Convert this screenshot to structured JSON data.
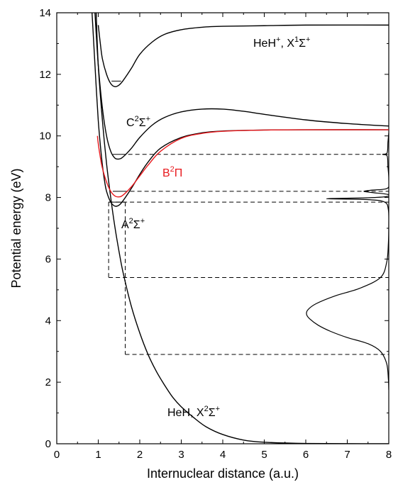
{
  "chart_data": {
    "type": "line",
    "title": "",
    "xlabel": "Internuclear distance (a.u.)",
    "ylabel": "Potential energy (eV)",
    "xlim": [
      0,
      8
    ],
    "ylim": [
      0,
      14
    ],
    "x_ticks": [
      0,
      1,
      2,
      3,
      4,
      5,
      6,
      7,
      8
    ],
    "y_ticks": [
      0,
      2,
      4,
      6,
      8,
      10,
      12,
      14
    ],
    "x_tick_labels": [
      "0",
      "1",
      "2",
      "3",
      "4",
      "5",
      "6",
      "7",
      "8"
    ],
    "y_tick_labels": [
      "0",
      "2",
      "4",
      "6",
      "8",
      "10",
      "12",
      "14"
    ],
    "grid": false,
    "colors": {
      "default": "#000000",
      "B2Pi": "#e8191d"
    },
    "annotations": [
      {
        "id": "hehplus",
        "main": "HeH",
        "sup1": "+",
        "mid": ", X",
        "sup2": "1",
        "sym": "Σ",
        "sup3": "+"
      },
      {
        "id": "c2sigma",
        "main": "C",
        "sup1": "2",
        "sym": "Σ",
        "sup2": "+"
      },
      {
        "id": "b2pi",
        "main": "B",
        "sup1": "2",
        "sym": "Π"
      },
      {
        "id": "a2sigma",
        "main": "A",
        "sup1": "2",
        "sym": "Σ",
        "sup2": "+"
      },
      {
        "id": "heh",
        "main": "HeH, X",
        "sup1": "2",
        "sym": "Σ",
        "sup2": "+"
      }
    ],
    "series": [
      {
        "label_id": "heh",
        "color": "#000000",
        "points": [
          [
            0.95,
            14.0
          ],
          [
            1.0,
            12.3
          ],
          [
            1.1,
            10.5
          ],
          [
            1.2,
            9.1
          ],
          [
            1.3,
            8.0
          ],
          [
            1.4,
            7.05
          ],
          [
            1.5,
            6.25
          ],
          [
            1.6,
            5.55
          ],
          [
            1.8,
            4.45
          ],
          [
            2.0,
            3.6
          ],
          [
            2.2,
            2.9
          ],
          [
            2.4,
            2.35
          ],
          [
            2.6,
            1.9
          ],
          [
            2.8,
            1.5
          ],
          [
            3.0,
            1.2
          ],
          [
            3.3,
            0.85
          ],
          [
            3.6,
            0.55
          ],
          [
            4.0,
            0.3
          ],
          [
            4.5,
            0.12
          ],
          [
            5.0,
            0.05
          ],
          [
            6.0,
            0.01
          ],
          [
            8.0,
            0.0
          ]
        ]
      },
      {
        "label_id": "a2sigma",
        "color": "#000000",
        "points": [
          [
            0.85,
            14.0
          ],
          [
            0.9,
            12.8
          ],
          [
            0.95,
            11.6
          ],
          [
            1.0,
            10.5
          ],
          [
            1.05,
            9.7
          ],
          [
            1.1,
            9.05
          ],
          [
            1.15,
            8.55
          ],
          [
            1.2,
            8.2
          ],
          [
            1.3,
            7.85
          ],
          [
            1.4,
            7.72
          ],
          [
            1.5,
            7.75
          ],
          [
            1.6,
            7.9
          ],
          [
            1.8,
            8.3
          ],
          [
            2.0,
            8.75
          ],
          [
            2.2,
            9.15
          ],
          [
            2.5,
            9.6
          ],
          [
            3.0,
            9.95
          ],
          [
            3.5,
            10.1
          ],
          [
            4.0,
            10.16
          ],
          [
            5.0,
            10.19
          ],
          [
            6.0,
            10.2
          ],
          [
            8.0,
            10.2
          ]
        ]
      },
      {
        "label_id": "b2pi",
        "color": "#e8191d",
        "points": [
          [
            0.98,
            10.0
          ],
          [
            1.0,
            9.75
          ],
          [
            1.05,
            9.3
          ],
          [
            1.1,
            8.95
          ],
          [
            1.2,
            8.5
          ],
          [
            1.3,
            8.2
          ],
          [
            1.4,
            8.05
          ],
          [
            1.5,
            8.02
          ],
          [
            1.6,
            8.08
          ],
          [
            1.8,
            8.35
          ],
          [
            2.0,
            8.7
          ],
          [
            2.2,
            9.05
          ],
          [
            2.5,
            9.5
          ],
          [
            3.0,
            9.92
          ],
          [
            3.5,
            10.08
          ],
          [
            4.0,
            10.15
          ],
          [
            5.0,
            10.19
          ],
          [
            6.0,
            10.2
          ],
          [
            8.0,
            10.2
          ]
        ]
      },
      {
        "label_id": "c2sigma",
        "color": "#000000",
        "points": [
          [
            0.92,
            14.0
          ],
          [
            1.0,
            12.3
          ],
          [
            1.1,
            10.9
          ],
          [
            1.2,
            10.0
          ],
          [
            1.3,
            9.5
          ],
          [
            1.4,
            9.28
          ],
          [
            1.5,
            9.25
          ],
          [
            1.6,
            9.32
          ],
          [
            1.8,
            9.6
          ],
          [
            2.0,
            9.95
          ],
          [
            2.3,
            10.35
          ],
          [
            2.6,
            10.6
          ],
          [
            3.0,
            10.78
          ],
          [
            3.5,
            10.87
          ],
          [
            4.0,
            10.87
          ],
          [
            4.5,
            10.8
          ],
          [
            5.0,
            10.7
          ],
          [
            6.0,
            10.52
          ],
          [
            7.0,
            10.4
          ],
          [
            8.0,
            10.32
          ]
        ]
      },
      {
        "label_id": "hehplus",
        "color": "#000000",
        "points": [
          [
            1.0,
            13.6
          ],
          [
            1.05,
            13.0
          ],
          [
            1.1,
            12.5
          ],
          [
            1.2,
            12.0
          ],
          [
            1.3,
            11.7
          ],
          [
            1.4,
            11.6
          ],
          [
            1.5,
            11.65
          ],
          [
            1.6,
            11.8
          ],
          [
            1.8,
            12.2
          ],
          [
            2.0,
            12.65
          ],
          [
            2.3,
            13.05
          ],
          [
            2.6,
            13.3
          ],
          [
            3.0,
            13.45
          ],
          [
            3.5,
            13.53
          ],
          [
            4.0,
            13.56
          ],
          [
            5.0,
            13.58
          ],
          [
            6.0,
            13.6
          ],
          [
            8.0,
            13.6
          ]
        ]
      }
    ],
    "vibrational_levels": [
      {
        "x": [
          1.32,
          1.55
        ],
        "y": 11.78
      },
      {
        "x": [
          1.35,
          1.55
        ],
        "y": 9.4
      },
      {
        "x": [
          1.35,
          1.6
        ],
        "y": 8.2
      },
      {
        "x": [
          1.25,
          1.65
        ],
        "y": 7.85
      }
    ],
    "dashed_lines": [
      {
        "x": [
          1.55,
          8.0
        ],
        "y": [
          9.4,
          9.4
        ]
      },
      {
        "x": [
          1.6,
          8.0
        ],
        "y": [
          8.2,
          8.2
        ]
      },
      {
        "x": [
          1.25,
          8.0
        ],
        "y": [
          7.85,
          7.85
        ]
      },
      {
        "x": [
          1.25,
          8.0
        ],
        "y": [
          5.4,
          5.4
        ]
      },
      {
        "x": [
          1.65,
          8.0
        ],
        "y": [
          2.9,
          2.9
        ]
      },
      {
        "x": [
          1.25,
          1.25
        ],
        "y": [
          7.85,
          5.4
        ]
      },
      {
        "x": [
          1.65,
          1.65
        ],
        "y": [
          7.85,
          2.9
        ]
      }
    ],
    "spectrum": {
      "points": [
        [
          8.0,
          1.75
        ],
        [
          7.99,
          2.1
        ],
        [
          7.95,
          2.6
        ],
        [
          7.8,
          3.0
        ],
        [
          7.5,
          3.25
        ],
        [
          7.0,
          3.45
        ],
        [
          6.6,
          3.65
        ],
        [
          6.3,
          3.85
        ],
        [
          6.1,
          4.05
        ],
        [
          6.02,
          4.2
        ],
        [
          6.05,
          4.35
        ],
        [
          6.25,
          4.55
        ],
        [
          6.7,
          4.8
        ],
        [
          7.3,
          5.05
        ],
        [
          7.8,
          5.4
        ],
        [
          7.95,
          5.9
        ],
        [
          7.99,
          6.5
        ],
        [
          8.0,
          7.1
        ],
        [
          7.99,
          7.6
        ],
        [
          7.9,
          7.85
        ],
        [
          7.5,
          7.93
        ],
        [
          6.5,
          7.96
        ],
        [
          7.5,
          7.99
        ],
        [
          7.95,
          8.03
        ],
        [
          7.97,
          8.1
        ],
        [
          7.6,
          8.16
        ],
        [
          7.4,
          8.2
        ],
        [
          7.6,
          8.24
        ],
        [
          7.97,
          8.3
        ],
        [
          8.0,
          8.6
        ],
        [
          7.98,
          9.0
        ],
        [
          7.96,
          9.35
        ],
        [
          7.85,
          9.4
        ],
        [
          7.96,
          9.45
        ],
        [
          7.98,
          9.8
        ],
        [
          8.0,
          10.1
        ]
      ]
    }
  }
}
